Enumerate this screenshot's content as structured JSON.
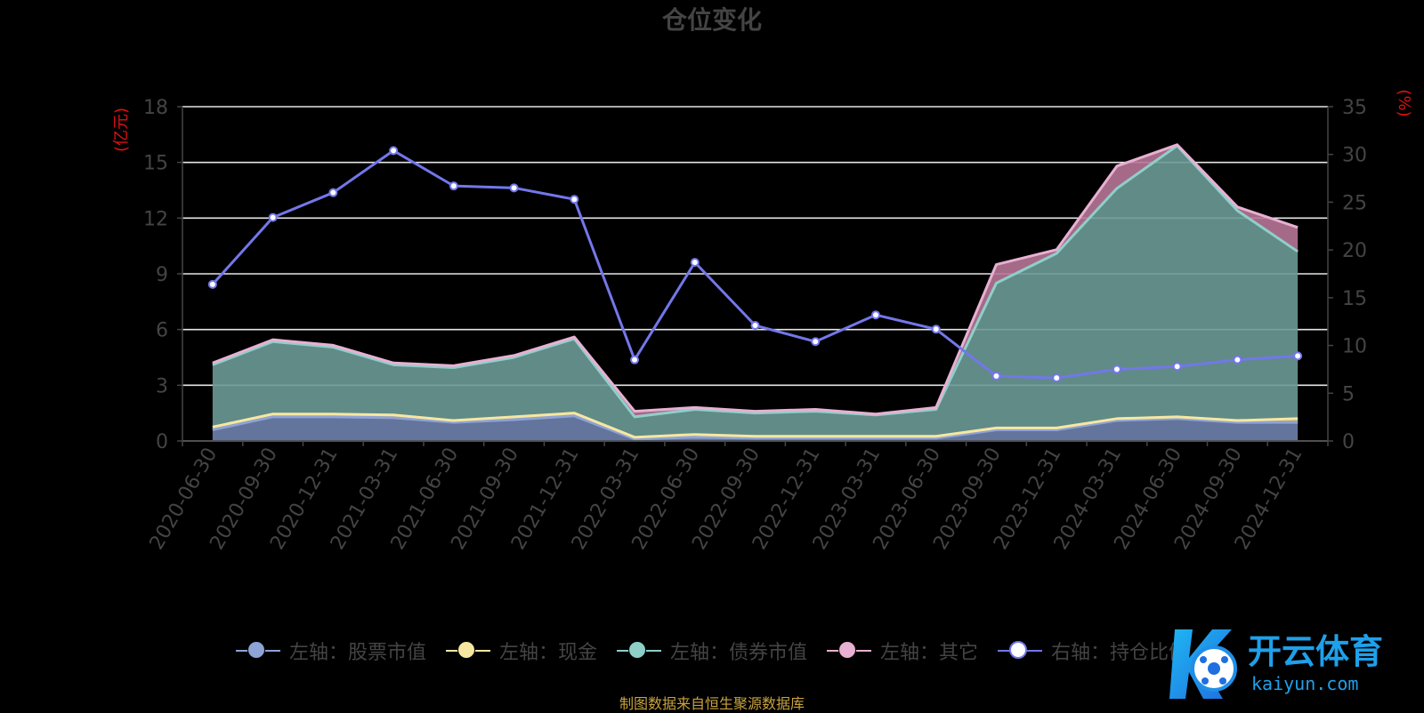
{
  "title": "仓位变化",
  "source_note": "制图数据来自恒生聚源数据库",
  "watermark_text": "开云体育",
  "watermark_url": "kaiyun.com",
  "colors": {
    "stock": "#8ea3d6",
    "cash": "#f7e7a0",
    "bond": "#8ecfc9",
    "other": "#e8b0d2",
    "ratio": "#7377ea",
    "axis_unit": "#e01010"
  },
  "chart_data": {
    "type": "area",
    "title": "仓位变化",
    "left_axis_label": "(亿元)",
    "right_axis_label": "(%)",
    "left_ylim": [
      0,
      18
    ],
    "left_ticks": [
      0,
      3,
      6,
      9,
      12,
      15,
      18
    ],
    "right_ylim": [
      0,
      35
    ],
    "right_ticks": [
      0,
      5,
      10,
      15,
      20,
      25,
      30,
      35
    ],
    "grid": true,
    "legend_position": "bottom",
    "categories": [
      "2020-06-30",
      "2020-09-30",
      "2020-12-31",
      "2021-03-31",
      "2021-06-30",
      "2021-09-30",
      "2021-12-31",
      "2022-03-31",
      "2022-06-30",
      "2022-09-30",
      "2022-12-31",
      "2023-03-31",
      "2023-06-30",
      "2023-09-30",
      "2023-12-31",
      "2024-03-31",
      "2024-06-30",
      "2024-09-30",
      "2024-12-31"
    ],
    "series": [
      {
        "name": "左轴：股票市值",
        "axis": "left",
        "stack": true,
        "type": "area",
        "values": [
          0.6,
          1.3,
          1.3,
          1.25,
          1.0,
          1.15,
          1.35,
          0.1,
          0.2,
          0.15,
          0.15,
          0.15,
          0.15,
          0.6,
          0.6,
          1.1,
          1.2,
          1.0,
          1.0
        ]
      },
      {
        "name": "左轴：现金",
        "axis": "left",
        "stack": true,
        "type": "area",
        "values": [
          0.15,
          0.15,
          0.15,
          0.15,
          0.1,
          0.15,
          0.15,
          0.1,
          0.15,
          0.1,
          0.1,
          0.1,
          0.1,
          0.1,
          0.1,
          0.1,
          0.1,
          0.1,
          0.2
        ]
      },
      {
        "name": "左轴：债券市值",
        "axis": "left",
        "stack": true,
        "type": "area",
        "values": [
          3.35,
          3.9,
          3.6,
          2.7,
          2.85,
          3.2,
          4.0,
          1.1,
          1.35,
          1.25,
          1.35,
          1.15,
          1.45,
          7.8,
          9.4,
          12.4,
          14.6,
          11.3,
          9.0
        ]
      },
      {
        "name": "左轴：其它",
        "axis": "left",
        "stack": true,
        "type": "area",
        "values": [
          0.1,
          0.1,
          0.1,
          0.1,
          0.1,
          0.1,
          0.1,
          0.3,
          0.1,
          0.1,
          0.1,
          0.05,
          0.1,
          1.0,
          0.2,
          1.2,
          0.05,
          0.2,
          1.3
        ]
      },
      {
        "name": "右轴：持仓比例",
        "axis": "right",
        "type": "line",
        "values": [
          16.4,
          23.4,
          26.0,
          30.4,
          26.7,
          26.5,
          25.3,
          8.5,
          18.7,
          12.1,
          10.4,
          13.2,
          11.7,
          6.8,
          6.6,
          7.5,
          7.8,
          8.5,
          8.9
        ]
      }
    ]
  }
}
